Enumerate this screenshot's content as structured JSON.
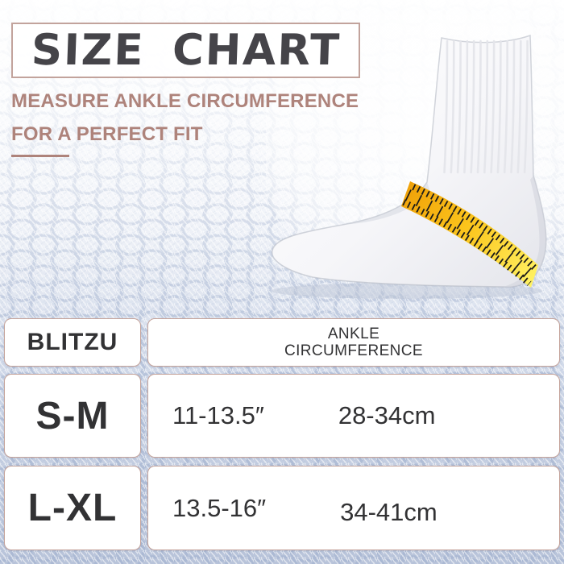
{
  "header": {
    "title": "SIZE CHART",
    "subtitle_line1": "MEASURE ANKLE CIRCUMFERENCE",
    "subtitle_line2": "FOR A PERFECT FIT"
  },
  "illustration": {
    "description": "white ribbed crew sock with yellow measuring tape wrapped around ankle"
  },
  "table": {
    "brand_header": "BLITZU",
    "measure_header": {
      "line1": "ANKLE",
      "line2": "CIRCUMFERENCE"
    },
    "rows": [
      {
        "size": "S-M",
        "inches": "11-13.5″",
        "cm": "28-34cm"
      },
      {
        "size": "L-XL",
        "inches": "13.5-16″",
        "cm": "34-41cm"
      }
    ]
  },
  "colors": {
    "title_text": "#454449",
    "title_box_border": "#c2a39c",
    "accent_mauve": "#ae837b",
    "cell_border": "#c5a49c",
    "cell_background": "#ffffff",
    "table_text": "#323234",
    "tape_orange": "#f0a209",
    "tape_mid": "#fcc51c",
    "tape_yellow": "#fff263",
    "background_blue": "#b9c4da"
  },
  "chart_data": {
    "type": "table",
    "title": "SIZE CHART",
    "subtitle": "MEASURE ANKLE CIRCUMFERENCE FOR A PERFECT FIT",
    "columns": [
      "BLITZU",
      "ANKLE CIRCUMFERENCE (in)",
      "ANKLE CIRCUMFERENCE (cm)"
    ],
    "rows": [
      [
        "S-M",
        "11-13.5″",
        "28-34cm"
      ],
      [
        "L-XL",
        "13.5-16″",
        "34-41cm"
      ]
    ]
  }
}
